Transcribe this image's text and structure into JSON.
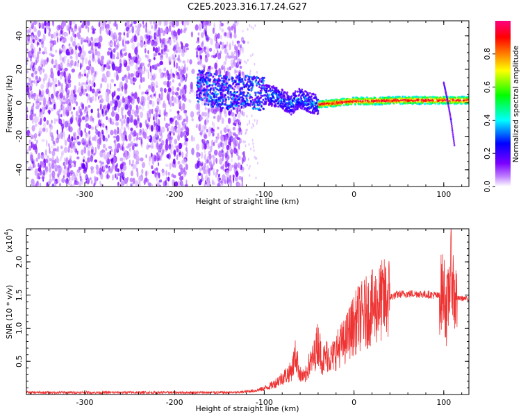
{
  "title": "C2E5.2023.316.17.24.G27",
  "chart_data": [
    {
      "type": "heatmap",
      "xlabel": "Height of straight line (km)",
      "ylabel": "Frequency (Hz)",
      "xlim": [
        -365,
        128
      ],
      "ylim": [
        -50,
        49
      ],
      "xticks": [
        "-300",
        "-200",
        "-100",
        "0",
        "100"
      ],
      "xtick_values": [
        -300,
        -200,
        -100,
        0,
        100
      ],
      "yticks": [
        "-40",
        "-20",
        "0",
        "20",
        "40"
      ],
      "ytick_values": [
        -40,
        -20,
        0,
        20,
        40
      ],
      "grid": false,
      "noise_region_km": [
        -365,
        -122
      ],
      "gap_region_km": [
        -185,
        -175
      ],
      "signal_track": [
        {
          "x": -175,
          "y": 10
        },
        {
          "x": -160,
          "y": 8
        },
        {
          "x": -140,
          "y": 6
        },
        {
          "x": -120,
          "y": 7
        },
        {
          "x": -100,
          "y": 5
        },
        {
          "x": -90,
          "y": 4
        },
        {
          "x": -80,
          "y": 2
        },
        {
          "x": -70,
          "y": -1
        },
        {
          "x": -60,
          "y": 3
        },
        {
          "x": -50,
          "y": 0
        },
        {
          "x": -40,
          "y": -1
        },
        {
          "x": -20,
          "y": 0
        },
        {
          "x": 0,
          "y": 1
        },
        {
          "x": 20,
          "y": 1
        },
        {
          "x": 50,
          "y": 1.5
        },
        {
          "x": 80,
          "y": 1.5
        },
        {
          "x": 100,
          "y": 1.5
        },
        {
          "x": 128,
          "y": 1.5
        }
      ],
      "side_branch": [
        {
          "x": 100,
          "y": 12
        },
        {
          "x": 104,
          "y": 2
        },
        {
          "x": 108,
          "y": -10
        },
        {
          "x": 112,
          "y": -26
        }
      ],
      "colorbar": {
        "label": "Normalized spectral amplitude",
        "ticks": [
          "0.0",
          "0.2",
          "0.4",
          "0.6",
          "0.8"
        ],
        "tick_values": [
          0.0,
          0.2,
          0.4,
          0.6,
          0.8
        ],
        "range": [
          0,
          1
        ],
        "colormap": [
          "#ffffff",
          "#7b00ff",
          "#0000ff",
          "#00ffff",
          "#00ff00",
          "#ffff00",
          "#ff8000",
          "#ff0000",
          "#ff0080"
        ]
      }
    },
    {
      "type": "line",
      "xlabel": "Height of straight line (km)",
      "ylabel": "SNR (10 * v/v)",
      "scale_label": "(x10",
      "scale_exp": "4",
      "scale_close": ")",
      "xlim": [
        -365,
        128
      ],
      "ylim": [
        0,
        25000
      ],
      "xticks": [
        "-300",
        "-200",
        "-100",
        "0",
        "100"
      ],
      "xtick_values": [
        -300,
        -200,
        -100,
        0,
        100
      ],
      "yticks": [
        "0.5",
        "1.0",
        "1.5",
        "2.0"
      ],
      "ytick_values": [
        5000,
        10000,
        15000,
        20000
      ],
      "color": "#ee3333",
      "grid": false,
      "series": [
        {
          "x": [
            -365,
            -300,
            -200,
            -130,
            -110,
            -100,
            -90,
            -80,
            -70,
            -65,
            -60,
            -55,
            -50,
            -45,
            -40,
            -35,
            -30,
            -25,
            -20,
            -15,
            -10,
            -5,
            0,
            5,
            10,
            15,
            20,
            30,
            40,
            50,
            60,
            70,
            80,
            90,
            95,
            100,
            104,
            108,
            112,
            120,
            128
          ],
          "y": [
            300,
            300,
            300,
            300,
            600,
            900,
            1500,
            2500,
            3500,
            6000,
            3000,
            2500,
            4500,
            5500,
            8000,
            5000,
            6000,
            5500,
            6500,
            7500,
            8000,
            9500,
            10500,
            11500,
            12000,
            12500,
            13000,
            14000,
            14700,
            15100,
            15200,
            15200,
            15100,
            15000,
            14800,
            16000,
            12000,
            20000,
            14500,
            14500,
            14400
          ]
        }
      ]
    }
  ]
}
